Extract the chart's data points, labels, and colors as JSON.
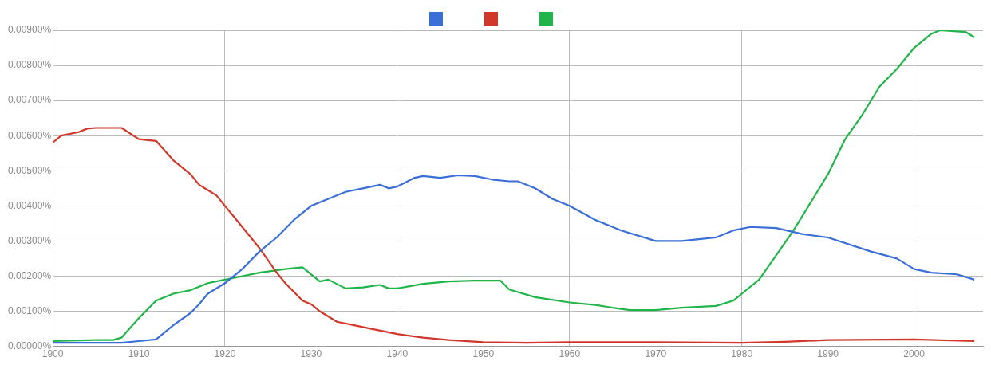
{
  "chart_data": {
    "type": "line",
    "xlim": [
      1900,
      2008
    ],
    "ylim": [
      0,
      0.009
    ],
    "grid": true,
    "marker": "none",
    "line_style": "solid",
    "xticks": [
      1900,
      1910,
      1920,
      1930,
      1940,
      1950,
      1960,
      1970,
      1980,
      1990,
      2000
    ],
    "yticks": [
      {
        "value": 0,
        "label": "0.00000%"
      },
      {
        "value": 0.001,
        "label": "0.00100%"
      },
      {
        "value": 0.002,
        "label": "0.00200%"
      },
      {
        "value": 0.003,
        "label": "0.00300%"
      },
      {
        "value": 0.004,
        "label": "0.00400%"
      },
      {
        "value": 0.005,
        "label": "0.00500%"
      },
      {
        "value": 0.006,
        "label": "0.00600%"
      },
      {
        "value": 0.007,
        "label": "0.00700%"
      },
      {
        "value": 0.008,
        "label": "0.00800%"
      },
      {
        "value": 0.009,
        "label": "0.00900%"
      }
    ],
    "series": [
      {
        "color": "#3a6fd8",
        "x": [
          1900,
          1908,
          1910,
          1912,
          1914,
          1916,
          1917,
          1918,
          1920,
          1922,
          1924,
          1926,
          1928,
          1930,
          1932,
          1934,
          1936,
          1938,
          1939,
          1940,
          1942,
          1943,
          1945,
          1947,
          1949,
          1951,
          1953,
          1954,
          1956,
          1958,
          1960,
          1963,
          1966,
          1970,
          1973,
          1975,
          1977,
          1979,
          1981,
          1984,
          1987,
          1990,
          1995,
          1998,
          2000,
          2002,
          2005,
          2007
        ],
        "values": [
          0.0001,
          0.0001,
          0.00015,
          0.0002,
          0.0006,
          0.00095,
          0.0012,
          0.0015,
          0.0018,
          0.0022,
          0.0027,
          0.0031,
          0.0036,
          0.004,
          0.0042,
          0.0044,
          0.0045,
          0.0046,
          0.0045,
          0.00455,
          0.0048,
          0.00485,
          0.0048,
          0.00487,
          0.00485,
          0.00475,
          0.0047,
          0.0047,
          0.0045,
          0.0042,
          0.004,
          0.0036,
          0.0033,
          0.003,
          0.003,
          0.00305,
          0.0031,
          0.0033,
          0.0034,
          0.00337,
          0.0032,
          0.0031,
          0.0027,
          0.0025,
          0.0022,
          0.0021,
          0.00205,
          0.0019
        ]
      },
      {
        "color": "#d2382a",
        "x": [
          1900,
          1901,
          1903,
          1904,
          1905,
          1908,
          1910,
          1912,
          1914,
          1916,
          1917,
          1919,
          1920,
          1921,
          1922,
          1924,
          1926,
          1927,
          1929,
          1930,
          1931,
          1933,
          1935,
          1937,
          1940,
          1943,
          1946,
          1950,
          1955,
          1960,
          1970,
          1980,
          1985,
          1990,
          2000,
          2007
        ],
        "values": [
          0.0058,
          0.006,
          0.0061,
          0.0062,
          0.00622,
          0.00622,
          0.0059,
          0.00585,
          0.0053,
          0.0049,
          0.0046,
          0.0043,
          0.004,
          0.0037,
          0.0034,
          0.0028,
          0.0021,
          0.0018,
          0.0013,
          0.0012,
          0.001,
          0.0007,
          0.0006,
          0.0005,
          0.00035,
          0.00025,
          0.00018,
          0.00012,
          0.0001,
          0.00012,
          0.00012,
          0.0001,
          0.00013,
          0.00018,
          0.0002,
          0.00015
        ]
      },
      {
        "color": "#20b548",
        "x": [
          1900,
          1905,
          1907,
          1908,
          1910,
          1912,
          1914,
          1916,
          1917,
          1918,
          1920,
          1922,
          1924,
          1927,
          1929,
          1931,
          1932,
          1934,
          1936,
          1938,
          1939,
          1940,
          1943,
          1946,
          1949,
          1952,
          1953,
          1956,
          1960,
          1963,
          1965,
          1967,
          1970,
          1973,
          1977,
          1979,
          1980,
          1982,
          1984,
          1986,
          1988,
          1990,
          1992,
          1994,
          1996,
          1998,
          2000,
          2002,
          2003,
          2006,
          2007
        ],
        "values": [
          0.00015,
          0.00018,
          0.00018,
          0.00025,
          0.0008,
          0.0013,
          0.0015,
          0.0016,
          0.0017,
          0.0018,
          0.0019,
          0.002,
          0.0021,
          0.0022,
          0.00225,
          0.00185,
          0.0019,
          0.00165,
          0.00168,
          0.00175,
          0.00165,
          0.00165,
          0.00178,
          0.00185,
          0.00187,
          0.00187,
          0.00162,
          0.0014,
          0.00125,
          0.00118,
          0.0011,
          0.00103,
          0.00103,
          0.0011,
          0.00115,
          0.0013,
          0.0015,
          0.0019,
          0.0026,
          0.0033,
          0.0041,
          0.0049,
          0.0059,
          0.0066,
          0.0074,
          0.0079,
          0.0085,
          0.0089,
          0.009,
          0.00895,
          0.0088
        ]
      }
    ]
  }
}
